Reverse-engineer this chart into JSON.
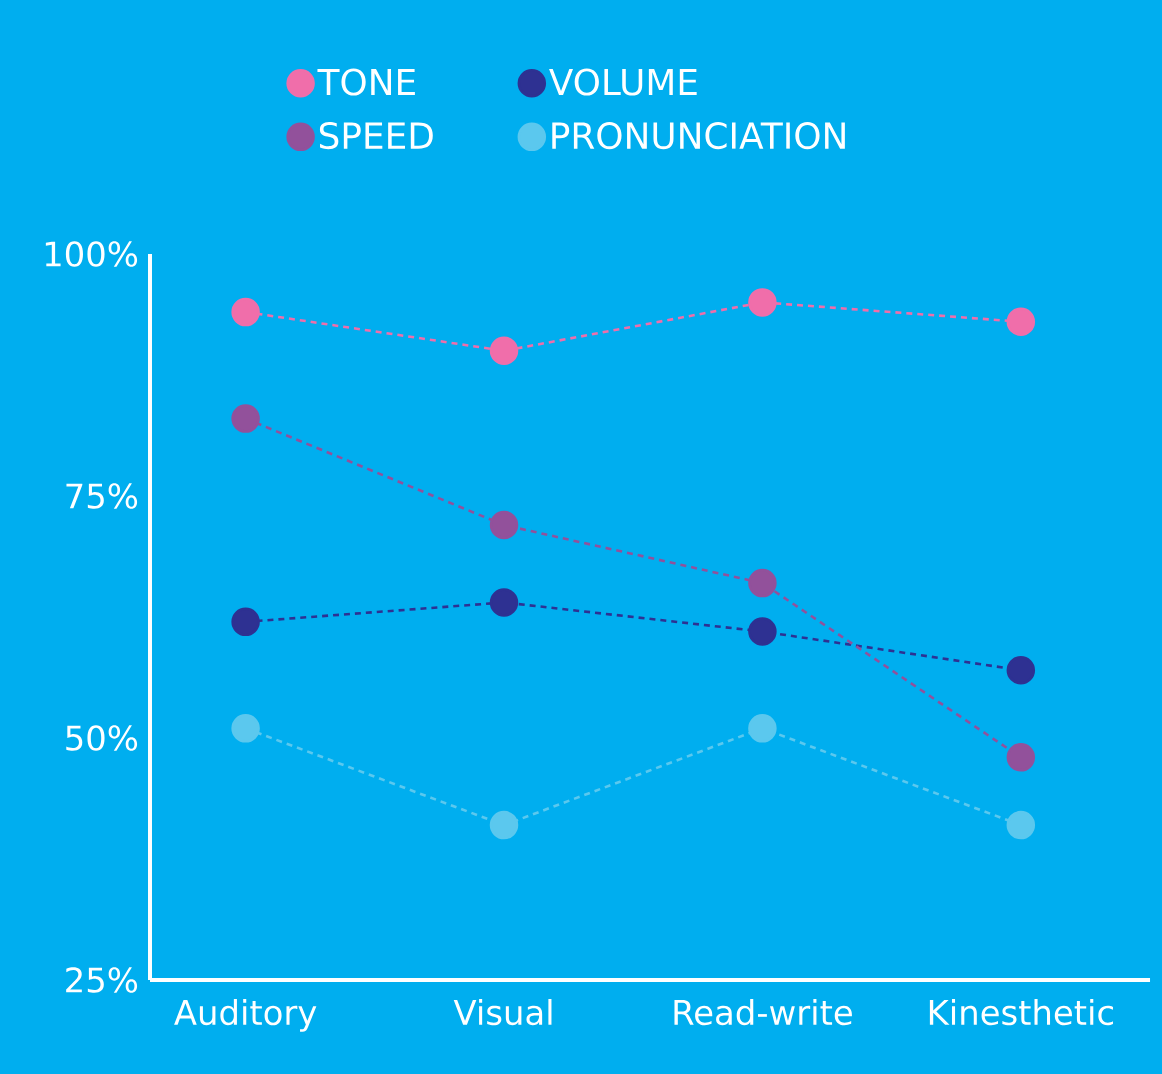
{
  "chart_data": {
    "type": "line",
    "categories": [
      "Auditory",
      "Visual",
      "Read-write",
      "Kinesthetic"
    ],
    "series": [
      {
        "name": "TONE",
        "color": "#f06eaa",
        "values": [
          94,
          90,
          95,
          93
        ]
      },
      {
        "name": "SPEED",
        "color": "#92519b",
        "values": [
          83,
          72,
          66,
          48
        ]
      },
      {
        "name": "VOLUME",
        "color": "#2e3192",
        "values": [
          62,
          64,
          61,
          57
        ]
      },
      {
        "name": "PRONUNCIATION",
        "color": "#5bc8ee",
        "values": [
          51,
          41,
          51,
          41
        ]
      }
    ],
    "ylim": [
      25,
      100
    ],
    "yticks": [
      {
        "value": 25,
        "label": "25%"
      },
      {
        "value": 50,
        "label": "50%"
      },
      {
        "value": 75,
        "label": "75%"
      },
      {
        "value": 100,
        "label": "100%"
      }
    ],
    "grid": false,
    "legend": "top",
    "marker": "circle",
    "line_style": "dashed"
  }
}
